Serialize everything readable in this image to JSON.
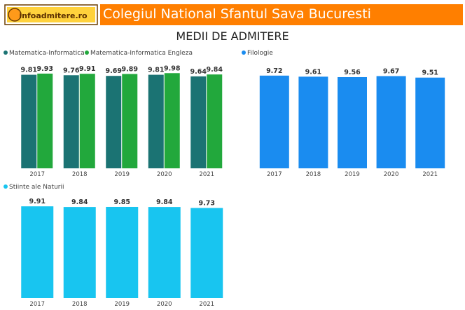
{
  "header": {
    "logo_text": "infoadmitere.ro",
    "title": "Colegiul National Sfantul Sava Bucuresti",
    "subtitle": "MEDII DE ADMITERE",
    "banner_color": "#ff7f00"
  },
  "chart_data": [
    {
      "type": "bar",
      "categories": [
        "2017",
        "2018",
        "2019",
        "2020",
        "2021"
      ],
      "series": [
        {
          "name": "Matematica-Informatica",
          "values": [
            9.81,
            9.76,
            9.69,
            9.81,
            9.64
          ],
          "color": "#1b7373"
        },
        {
          "name": "Matematica-Informatica Engleza",
          "values": [
            9.93,
            9.91,
            9.89,
            9.98,
            9.84
          ],
          "color": "#22a83c"
        }
      ],
      "ylim": [
        0,
        10
      ],
      "legend": "top-left",
      "grid": false
    },
    {
      "type": "bar",
      "categories": [
        "2017",
        "2018",
        "2019",
        "2020",
        "2021"
      ],
      "series": [
        {
          "name": "Filologie",
          "values": [
            9.72,
            9.61,
            9.56,
            9.67,
            9.51
          ],
          "color": "#1a8cf0"
        }
      ],
      "ylim": [
        0,
        10
      ],
      "legend": "top-left",
      "grid": false
    },
    {
      "type": "bar",
      "categories": [
        "2017",
        "2018",
        "2019",
        "2020",
        "2021"
      ],
      "series": [
        {
          "name": "Stiinte ale Naturii",
          "values": [
            9.91,
            9.84,
            9.85,
            9.84,
            9.73
          ],
          "color": "#18c5f0"
        }
      ],
      "ylim": [
        0,
        10
      ],
      "legend": "top-left",
      "grid": false
    }
  ]
}
